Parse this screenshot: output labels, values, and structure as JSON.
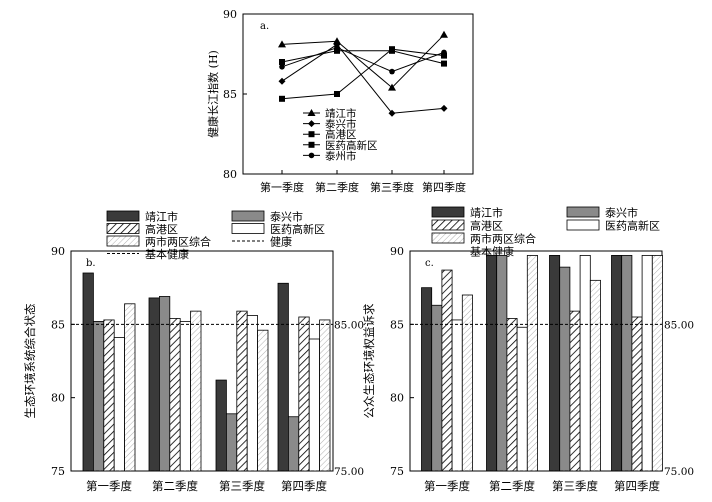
{
  "chart_data": [
    {
      "id": "a",
      "type": "line",
      "panel_label": "a.",
      "ylabel": "健康长江指数 (H)",
      "ylim": [
        80,
        90
      ],
      "yticks": [
        "80",
        "85",
        "90"
      ],
      "categories": [
        "第一季度",
        "第二季度",
        "第三季度",
        "第四季度"
      ],
      "series": [
        {
          "name": "靖江市",
          "marker": "triangle",
          "values": [
            88.1,
            88.3,
            85.4,
            88.7
          ]
        },
        {
          "name": "泰兴市",
          "marker": "diamond",
          "values": [
            85.8,
            88.1,
            83.8,
            84.1
          ]
        },
        {
          "name": "高港区",
          "marker": "square",
          "values": [
            84.7,
            85.0,
            87.8,
            87.4
          ]
        },
        {
          "name": "医药高新区",
          "marker": "square",
          "values": [
            87.0,
            87.7,
            87.7,
            86.9
          ]
        },
        {
          "name": "泰州市",
          "marker": "circle",
          "values": [
            86.7,
            87.9,
            86.4,
            87.6
          ]
        }
      ]
    },
    {
      "id": "b",
      "type": "bar",
      "panel_label": "b.",
      "ylabel": "生态环境系统综合状态",
      "ylim": [
        75,
        90
      ],
      "yticks": [
        "75",
        "80",
        "85",
        "90"
      ],
      "categories": [
        "第一季度",
        "第二季度",
        "第三季度",
        "第四季度"
      ],
      "series": [
        {
          "name": "靖江市",
          "pattern": "dark",
          "values": [
            88.5,
            86.8,
            81.2,
            87.8
          ]
        },
        {
          "name": "泰兴市",
          "pattern": "gray",
          "values": [
            85.2,
            86.9,
            78.9,
            78.7
          ]
        },
        {
          "name": "高港区",
          "pattern": "hatch",
          "values": [
            85.3,
            85.4,
            85.9,
            85.5
          ]
        },
        {
          "name": "医药高新区",
          "pattern": "white",
          "values": [
            84.1,
            85.2,
            85.6,
            84.0
          ]
        },
        {
          "name": "两市两区综合",
          "pattern": "light",
          "values": [
            86.4,
            85.9,
            84.6,
            85.3
          ]
        }
      ],
      "reference_lines": [
        {
          "name": "健康",
          "value": 85,
          "label": "85.00"
        },
        {
          "name": "基本健康",
          "value": 75,
          "label": "75.00"
        }
      ]
    },
    {
      "id": "c",
      "type": "bar",
      "panel_label": "c.",
      "ylabel": "公众生态环境权益诉求",
      "ylim": [
        75,
        90
      ],
      "yticks": [
        "75",
        "80",
        "85",
        "90"
      ],
      "categories": [
        "第一季度",
        "第二季度",
        "第三季度",
        "第四季度"
      ],
      "series": [
        {
          "name": "靖江市",
          "pattern": "dark",
          "values": [
            87.5,
            89.7,
            89.7,
            89.7
          ]
        },
        {
          "name": "泰兴市",
          "pattern": "gray",
          "values": [
            86.3,
            89.7,
            88.9,
            89.7
          ]
        },
        {
          "name": "高港区",
          "pattern": "hatch",
          "values": [
            88.7,
            85.4,
            85.9,
            85.5
          ]
        },
        {
          "name": "医药高新区",
          "pattern": "white",
          "values": [
            85.3,
            84.8,
            89.7,
            89.7
          ]
        },
        {
          "name": "两市两区综合",
          "pattern": "light",
          "values": [
            87.0,
            89.7,
            88.0,
            89.7
          ]
        }
      ],
      "reference_lines": [
        {
          "name": "健康",
          "value": 85,
          "label": "85.00"
        },
        {
          "name": "基本健康",
          "value": 75,
          "label": "75.00"
        }
      ]
    }
  ],
  "legend_b": [
    {
      "label": "靖江市",
      "type": "dark"
    },
    {
      "label": "泰兴市",
      "type": "gray"
    },
    {
      "label": "高港区",
      "type": "hatch"
    },
    {
      "label": "医药高新区",
      "type": "white"
    },
    {
      "label": "两市两区综合",
      "type": "light"
    },
    {
      "label": "健康",
      "type": "dash"
    },
    {
      "label": "基本健康",
      "type": "dash"
    }
  ],
  "legend_c": [
    {
      "label": "靖江市",
      "type": "dark"
    },
    {
      "label": "泰兴市",
      "type": "gray"
    },
    {
      "label": "高港区",
      "type": "hatch"
    },
    {
      "label": "医药高新区",
      "type": "white"
    },
    {
      "label": "两市两区综合",
      "type": "light"
    },
    {
      "label": "基本健康",
      "type": "dash"
    }
  ]
}
